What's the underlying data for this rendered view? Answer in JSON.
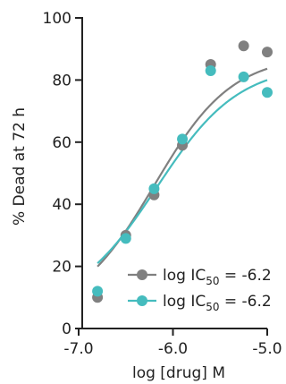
{
  "chart_data": {
    "type": "scatter",
    "title": "",
    "xlabel": "log [drug] M",
    "ylabel": "% Dead at 72 h",
    "xlim": [
      -7.0,
      -5.0
    ],
    "ylim": [
      0,
      100
    ],
    "xticks": [
      -7.0,
      -6.0,
      -5.0
    ],
    "xtick_labels": [
      "-7.0",
      "-6.0",
      "-5.0"
    ],
    "yticks": [
      0,
      20,
      40,
      60,
      80,
      100
    ],
    "ytick_labels": [
      "0",
      "20",
      "40",
      "60",
      "80",
      "100"
    ],
    "grid": false,
    "legend_position": "bottom-right",
    "series": [
      {
        "legend_main": "log IC",
        "legend_sub": "50",
        "legend_value": " = -6.2",
        "color": "#808080",
        "x": [
          -6.8,
          -6.5,
          -6.2,
          -5.9,
          -5.6,
          -5.25,
          -5.0
        ],
        "y": [
          10,
          30,
          43,
          59,
          85,
          91,
          89
        ],
        "fit": {
          "bottom": 4,
          "top": 88,
          "log_ic50": -6.2,
          "hill": 1.05
        }
      },
      {
        "legend_main": "log IC",
        "legend_sub": "50",
        "legend_value": " = -6.2",
        "color": "#45bcbe",
        "x": [
          -6.8,
          -6.5,
          -6.2,
          -5.9,
          -5.6,
          -5.25,
          -5.0
        ],
        "y": [
          12,
          29,
          45,
          61,
          83,
          81,
          76
        ],
        "fit": {
          "bottom": 6,
          "top": 85,
          "log_ic50": -6.17,
          "hill": 1.0
        }
      }
    ]
  }
}
